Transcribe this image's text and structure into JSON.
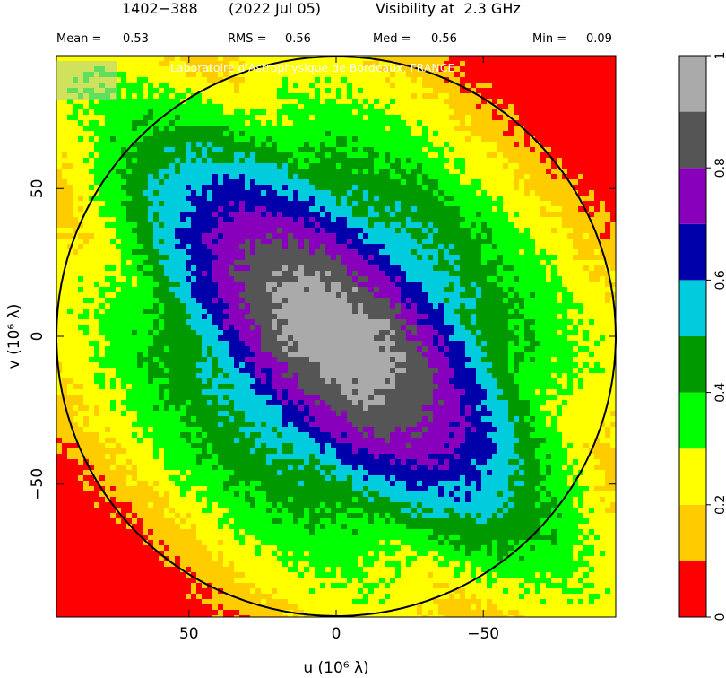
{
  "header": {
    "source": "1402−388",
    "date": "(2022 Jul 05)",
    "title": "Visibility at  2.3 GHz"
  },
  "stats": [
    {
      "label": "Mean =",
      "value": "0.53"
    },
    {
      "label": "RMS =",
      "value": "0.56"
    },
    {
      "label": "Med =",
      "value": "0.56"
    },
    {
      "label": "Min =",
      "value": "0.09"
    }
  ],
  "watermark": "Laboratoire d'Astrophysique de Bordeaux, FRANCE",
  "chart_data": {
    "type": "heatmap",
    "title": "Visibility at  2.3 GHz",
    "xlabel": "u  (10⁶ λ)",
    "ylabel": "v  (10⁶ λ)",
    "xlim": [
      95,
      -95
    ],
    "ylim": [
      -95,
      95
    ],
    "xticks": [
      50,
      0,
      -50
    ],
    "yticks": [
      -50,
      0,
      50
    ],
    "xtick_labels": [
      "50",
      "0",
      "−50"
    ],
    "ytick_labels": [
      "−50",
      "0",
      "50"
    ],
    "circle_radius": 95,
    "ellipse_orientation": "major axis from upper-left to lower-right",
    "colorbar": {
      "range": [
        0,
        1
      ],
      "tick_values": [
        0,
        0.2,
        0.4,
        0.6,
        0.8,
        1
      ],
      "tick_labels": [
        "0",
        "0.2",
        "0.4",
        "0.6",
        "0.8",
        "1"
      ],
      "colors": [
        "#ff0000",
        "#ffcc00",
        "#ffff00",
        "#00ff00",
        "#009900",
        "#00ccdd",
        "#0000aa",
        "#8800bb",
        "#555555",
        "#aaaaaa"
      ]
    },
    "stats": {
      "mean": 0.53,
      "rms": 0.56,
      "median": 0.56,
      "min": 0.09
    }
  }
}
